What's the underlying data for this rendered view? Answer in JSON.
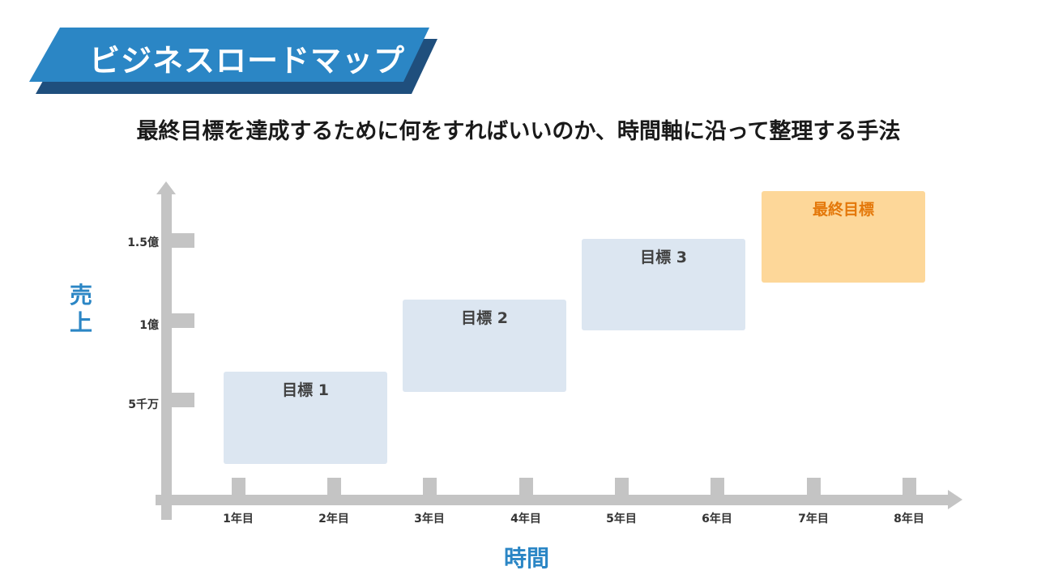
{
  "title": "ビジネスロードマップ",
  "subtitle": "最終目標を達成するために何をすればいいのか、時間軸に沿って整理する手法",
  "axis": {
    "y_label_chars": [
      "売",
      "上"
    ],
    "x_label": "時間",
    "y_ticks": [
      "1.5億",
      "1億",
      "5千万"
    ],
    "x_ticks": [
      "1年目",
      "2年目",
      "3年目",
      "4年目",
      "5年目",
      "6年目",
      "7年目",
      "8年目"
    ]
  },
  "goals": [
    {
      "label": "目標 1"
    },
    {
      "label": "目標 2"
    },
    {
      "label": "目標 3"
    },
    {
      "label": "最終目標"
    }
  ],
  "colors": {
    "banner_front": "#2b86c5",
    "banner_back": "#1f4f7d",
    "axis": "#c4c4c4",
    "goal_box": "#dce6f1",
    "final_box": "#fdd799",
    "final_text": "#e4780a",
    "axis_label": "#2b86c5"
  }
}
